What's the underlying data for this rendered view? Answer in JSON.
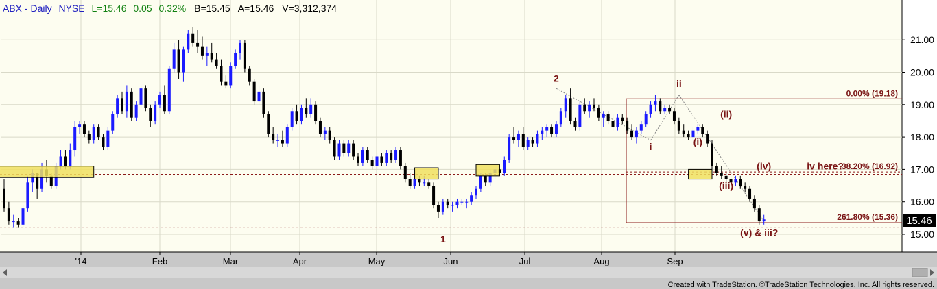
{
  "header": {
    "symbol_info": "ABX - Daily",
    "exchange": "NYSE",
    "last": "L=15.46",
    "change": "0.05",
    "change_pct": "0.32%",
    "bid": "B=15.45",
    "ask": "A=15.46",
    "volume": "V=3,312,374"
  },
  "price_label": "15.46",
  "footer": {
    "credit": "Created with TradeStation. ©TradeStation Technologies, Inc. All rights reserved."
  },
  "colors": {
    "plot_bg": "#fdfdf0",
    "bull": "#1a1aff",
    "bear": "#000000",
    "wave_label": "#7a1515",
    "fib_line": "#8b1a1a",
    "box_fill": "#f0e060",
    "header_blue": "#2020c0",
    "header_green": "#108010"
  },
  "chart_data": {
    "type": "candlestick",
    "title": "ABX - Daily",
    "ylim": [
      14.5,
      21.6
    ],
    "y_ticks": [
      "15.00",
      "16.00",
      "17.00",
      "18.00",
      "19.00",
      "20.00",
      "21.00"
    ],
    "x_labels": [
      "'14",
      "Feb",
      "Mar",
      "Apr",
      "May",
      "Jun",
      "Jul",
      "Aug",
      "Sep"
    ],
    "grid": true,
    "candles": [
      {
        "o": 16.4,
        "h": 16.7,
        "l": 15.7,
        "c": 15.8
      },
      {
        "o": 15.8,
        "h": 16.0,
        "l": 15.3,
        "c": 15.4
      },
      {
        "o": 15.4,
        "h": 15.6,
        "l": 15.2,
        "c": 15.4
      },
      {
        "o": 15.4,
        "h": 15.5,
        "l": 15.2,
        "c": 15.3
      },
      {
        "o": 15.3,
        "h": 15.9,
        "l": 15.2,
        "c": 15.8
      },
      {
        "o": 15.8,
        "h": 16.8,
        "l": 15.7,
        "c": 16.6
      },
      {
        "o": 16.6,
        "h": 17.0,
        "l": 16.3,
        "c": 16.9
      },
      {
        "o": 16.9,
        "h": 16.9,
        "l": 16.1,
        "c": 16.4
      },
      {
        "o": 16.4,
        "h": 17.2,
        "l": 16.3,
        "c": 17.0
      },
      {
        "o": 17.0,
        "h": 17.3,
        "l": 16.6,
        "c": 16.8
      },
      {
        "o": 16.8,
        "h": 16.9,
        "l": 16.4,
        "c": 16.5
      },
      {
        "o": 16.5,
        "h": 17.2,
        "l": 16.4,
        "c": 17.1
      },
      {
        "o": 17.1,
        "h": 17.6,
        "l": 17.0,
        "c": 17.4
      },
      {
        "o": 17.4,
        "h": 17.6,
        "l": 17.0,
        "c": 17.1
      },
      {
        "o": 17.1,
        "h": 17.8,
        "l": 17.0,
        "c": 17.6
      },
      {
        "o": 17.6,
        "h": 18.5,
        "l": 17.4,
        "c": 18.3
      },
      {
        "o": 18.3,
        "h": 18.5,
        "l": 18.1,
        "c": 18.4
      },
      {
        "o": 18.4,
        "h": 18.5,
        "l": 18.0,
        "c": 18.1
      },
      {
        "o": 18.1,
        "h": 18.2,
        "l": 17.8,
        "c": 17.9
      },
      {
        "o": 17.9,
        "h": 18.4,
        "l": 17.8,
        "c": 18.3
      },
      {
        "o": 18.3,
        "h": 18.4,
        "l": 17.9,
        "c": 18.0
      },
      {
        "o": 18.0,
        "h": 18.1,
        "l": 17.6,
        "c": 17.7
      },
      {
        "o": 17.7,
        "h": 18.3,
        "l": 17.6,
        "c": 18.2
      },
      {
        "o": 18.2,
        "h": 18.8,
        "l": 18.1,
        "c": 18.7
      },
      {
        "o": 18.7,
        "h": 19.3,
        "l": 18.6,
        "c": 19.2
      },
      {
        "o": 19.2,
        "h": 19.4,
        "l": 18.7,
        "c": 18.8
      },
      {
        "o": 18.8,
        "h": 19.6,
        "l": 18.6,
        "c": 19.4
      },
      {
        "o": 19.4,
        "h": 19.5,
        "l": 18.5,
        "c": 18.6
      },
      {
        "o": 18.6,
        "h": 19.1,
        "l": 18.5,
        "c": 19.0
      },
      {
        "o": 19.0,
        "h": 19.6,
        "l": 18.9,
        "c": 19.5
      },
      {
        "o": 19.5,
        "h": 19.6,
        "l": 18.8,
        "c": 18.9
      },
      {
        "o": 18.9,
        "h": 19.0,
        "l": 18.3,
        "c": 18.5
      },
      {
        "o": 18.5,
        "h": 19.1,
        "l": 18.4,
        "c": 19.0
      },
      {
        "o": 19.0,
        "h": 19.4,
        "l": 18.9,
        "c": 19.3
      },
      {
        "o": 19.3,
        "h": 19.6,
        "l": 18.7,
        "c": 18.8
      },
      {
        "o": 18.8,
        "h": 20.2,
        "l": 18.7,
        "c": 20.1
      },
      {
        "o": 20.1,
        "h": 20.9,
        "l": 20.0,
        "c": 20.7
      },
      {
        "o": 20.7,
        "h": 21.0,
        "l": 19.8,
        "c": 20.0
      },
      {
        "o": 20.0,
        "h": 20.8,
        "l": 19.7,
        "c": 20.7
      },
      {
        "o": 20.7,
        "h": 21.3,
        "l": 20.6,
        "c": 21.2
      },
      {
        "o": 21.2,
        "h": 21.4,
        "l": 20.8,
        "c": 20.9
      },
      {
        "o": 20.9,
        "h": 21.3,
        "l": 20.6,
        "c": 20.8
      },
      {
        "o": 20.8,
        "h": 21.1,
        "l": 20.4,
        "c": 20.5
      },
      {
        "o": 20.5,
        "h": 20.8,
        "l": 20.2,
        "c": 20.6
      },
      {
        "o": 20.6,
        "h": 20.9,
        "l": 20.3,
        "c": 20.4
      },
      {
        "o": 20.4,
        "h": 20.6,
        "l": 20.1,
        "c": 20.2
      },
      {
        "o": 20.2,
        "h": 20.4,
        "l": 19.6,
        "c": 19.7
      },
      {
        "o": 19.7,
        "h": 19.9,
        "l": 19.5,
        "c": 19.6
      },
      {
        "o": 19.6,
        "h": 20.3,
        "l": 19.5,
        "c": 20.2
      },
      {
        "o": 20.2,
        "h": 20.7,
        "l": 20.1,
        "c": 20.6
      },
      {
        "o": 20.6,
        "h": 21.0,
        "l": 20.4,
        "c": 20.9
      },
      {
        "o": 20.9,
        "h": 21.0,
        "l": 20.0,
        "c": 20.1
      },
      {
        "o": 20.1,
        "h": 20.2,
        "l": 19.6,
        "c": 19.7
      },
      {
        "o": 19.7,
        "h": 19.8,
        "l": 19.0,
        "c": 19.1
      },
      {
        "o": 19.1,
        "h": 19.6,
        "l": 19.0,
        "c": 19.4
      },
      {
        "o": 19.4,
        "h": 19.5,
        "l": 18.6,
        "c": 18.7
      },
      {
        "o": 18.7,
        "h": 18.8,
        "l": 18.0,
        "c": 18.1
      },
      {
        "o": 18.1,
        "h": 18.3,
        "l": 17.8,
        "c": 17.9
      },
      {
        "o": 17.9,
        "h": 18.1,
        "l": 17.7,
        "c": 17.9
      },
      {
        "o": 17.9,
        "h": 18.2,
        "l": 17.7,
        "c": 17.8
      },
      {
        "o": 17.8,
        "h": 18.4,
        "l": 17.7,
        "c": 18.3
      },
      {
        "o": 18.3,
        "h": 18.9,
        "l": 18.2,
        "c": 18.8
      },
      {
        "o": 18.8,
        "h": 19.0,
        "l": 18.4,
        "c": 18.5
      },
      {
        "o": 18.5,
        "h": 19.0,
        "l": 18.4,
        "c": 18.9
      },
      {
        "o": 18.9,
        "h": 19.2,
        "l": 18.6,
        "c": 18.7
      },
      {
        "o": 18.7,
        "h": 19.2,
        "l": 18.6,
        "c": 19.0
      },
      {
        "o": 19.0,
        "h": 19.1,
        "l": 18.4,
        "c": 18.5
      },
      {
        "o": 18.5,
        "h": 18.6,
        "l": 18.0,
        "c": 18.1
      },
      {
        "o": 18.1,
        "h": 18.3,
        "l": 17.9,
        "c": 18.2
      },
      {
        "o": 18.2,
        "h": 18.3,
        "l": 17.8,
        "c": 17.9
      },
      {
        "o": 17.9,
        "h": 18.0,
        "l": 17.3,
        "c": 17.4
      },
      {
        "o": 17.4,
        "h": 17.9,
        "l": 17.3,
        "c": 17.8
      },
      {
        "o": 17.8,
        "h": 17.9,
        "l": 17.4,
        "c": 17.5
      },
      {
        "o": 17.5,
        "h": 17.9,
        "l": 17.4,
        "c": 17.8
      },
      {
        "o": 17.8,
        "h": 17.9,
        "l": 17.3,
        "c": 17.4
      },
      {
        "o": 17.4,
        "h": 17.5,
        "l": 17.1,
        "c": 17.2
      },
      {
        "o": 17.2,
        "h": 17.7,
        "l": 17.1,
        "c": 17.6
      },
      {
        "o": 17.6,
        "h": 17.7,
        "l": 17.2,
        "c": 17.3
      },
      {
        "o": 17.3,
        "h": 17.4,
        "l": 17.0,
        "c": 17.1
      },
      {
        "o": 17.1,
        "h": 17.5,
        "l": 17.0,
        "c": 17.4
      },
      {
        "o": 17.4,
        "h": 17.5,
        "l": 17.1,
        "c": 17.2
      },
      {
        "o": 17.2,
        "h": 17.6,
        "l": 17.1,
        "c": 17.5
      },
      {
        "o": 17.5,
        "h": 17.6,
        "l": 17.2,
        "c": 17.3
      },
      {
        "o": 17.3,
        "h": 17.7,
        "l": 17.2,
        "c": 17.6
      },
      {
        "o": 17.6,
        "h": 17.7,
        "l": 17.0,
        "c": 17.1
      },
      {
        "o": 17.1,
        "h": 17.2,
        "l": 16.6,
        "c": 16.7
      },
      {
        "o": 16.7,
        "h": 16.9,
        "l": 16.4,
        "c": 16.5
      },
      {
        "o": 16.5,
        "h": 16.8,
        "l": 16.4,
        "c": 16.7
      },
      {
        "o": 16.7,
        "h": 16.8,
        "l": 16.5,
        "c": 16.6
      },
      {
        "o": 16.6,
        "h": 16.8,
        "l": 16.5,
        "c": 16.6
      },
      {
        "o": 16.6,
        "h": 16.7,
        "l": 16.4,
        "c": 16.5
      },
      {
        "o": 16.5,
        "h": 16.6,
        "l": 15.8,
        "c": 15.9
      },
      {
        "o": 15.9,
        "h": 16.0,
        "l": 15.5,
        "c": 15.7
      },
      {
        "o": 15.7,
        "h": 16.1,
        "l": 15.6,
        "c": 16.0
      },
      {
        "o": 16.0,
        "h": 16.1,
        "l": 15.8,
        "c": 15.9
      },
      {
        "o": 15.9,
        "h": 16.0,
        "l": 15.7,
        "c": 15.9
      },
      {
        "o": 15.9,
        "h": 16.1,
        "l": 15.8,
        "c": 16.0
      },
      {
        "o": 16.0,
        "h": 16.1,
        "l": 15.9,
        "c": 16.0
      },
      {
        "o": 16.0,
        "h": 16.1,
        "l": 15.8,
        "c": 16.0
      },
      {
        "o": 16.0,
        "h": 16.3,
        "l": 15.9,
        "c": 16.2
      },
      {
        "o": 16.2,
        "h": 16.5,
        "l": 16.1,
        "c": 16.4
      },
      {
        "o": 16.4,
        "h": 16.9,
        "l": 16.3,
        "c": 16.8
      },
      {
        "o": 16.8,
        "h": 16.9,
        "l": 16.5,
        "c": 16.6
      },
      {
        "o": 16.6,
        "h": 17.0,
        "l": 16.5,
        "c": 16.9
      },
      {
        "o": 16.9,
        "h": 17.1,
        "l": 16.7,
        "c": 17.0
      },
      {
        "o": 17.0,
        "h": 17.0,
        "l": 16.8,
        "c": 16.9
      },
      {
        "o": 16.9,
        "h": 17.4,
        "l": 16.8,
        "c": 17.3
      },
      {
        "o": 17.3,
        "h": 18.1,
        "l": 17.2,
        "c": 18.0
      },
      {
        "o": 18.0,
        "h": 18.3,
        "l": 17.8,
        "c": 17.9
      },
      {
        "o": 17.9,
        "h": 18.2,
        "l": 17.7,
        "c": 18.1
      },
      {
        "o": 18.1,
        "h": 18.3,
        "l": 17.6,
        "c": 17.7
      },
      {
        "o": 17.7,
        "h": 18.0,
        "l": 17.6,
        "c": 17.9
      },
      {
        "o": 17.9,
        "h": 18.0,
        "l": 17.7,
        "c": 17.8
      },
      {
        "o": 17.8,
        "h": 18.2,
        "l": 17.7,
        "c": 18.1
      },
      {
        "o": 18.1,
        "h": 18.3,
        "l": 17.9,
        "c": 18.2
      },
      {
        "o": 18.2,
        "h": 18.4,
        "l": 18.0,
        "c": 18.3
      },
      {
        "o": 18.3,
        "h": 18.4,
        "l": 18.0,
        "c": 18.1
      },
      {
        "o": 18.1,
        "h": 18.5,
        "l": 18.0,
        "c": 18.4
      },
      {
        "o": 18.4,
        "h": 18.9,
        "l": 18.3,
        "c": 18.8
      },
      {
        "o": 18.8,
        "h": 19.3,
        "l": 18.6,
        "c": 19.2
      },
      {
        "o": 19.2,
        "h": 19.5,
        "l": 18.4,
        "c": 18.5
      },
      {
        "o": 18.5,
        "h": 18.6,
        "l": 18.2,
        "c": 18.3
      },
      {
        "o": 18.3,
        "h": 19.1,
        "l": 18.2,
        "c": 19.0
      },
      {
        "o": 19.0,
        "h": 19.2,
        "l": 18.7,
        "c": 18.8
      },
      {
        "o": 18.8,
        "h": 19.1,
        "l": 18.6,
        "c": 19.0
      },
      {
        "o": 19.0,
        "h": 19.2,
        "l": 18.8,
        "c": 18.9
      },
      {
        "o": 18.9,
        "h": 19.0,
        "l": 18.5,
        "c": 18.6
      },
      {
        "o": 18.6,
        "h": 18.8,
        "l": 18.3,
        "c": 18.7
      },
      {
        "o": 18.7,
        "h": 18.8,
        "l": 18.4,
        "c": 18.5
      },
      {
        "o": 18.5,
        "h": 18.7,
        "l": 18.2,
        "c": 18.3
      },
      {
        "o": 18.3,
        "h": 18.7,
        "l": 18.2,
        "c": 18.6
      },
      {
        "o": 18.6,
        "h": 18.7,
        "l": 18.4,
        "c": 18.5
      },
      {
        "o": 18.5,
        "h": 18.6,
        "l": 18.1,
        "c": 18.2
      },
      {
        "o": 18.2,
        "h": 18.4,
        "l": 17.9,
        "c": 18.0
      },
      {
        "o": 18.0,
        "h": 18.3,
        "l": 17.8,
        "c": 18.2
      },
      {
        "o": 18.2,
        "h": 18.5,
        "l": 18.1,
        "c": 18.4
      },
      {
        "o": 18.4,
        "h": 18.8,
        "l": 18.3,
        "c": 18.7
      },
      {
        "o": 18.7,
        "h": 19.1,
        "l": 18.6,
        "c": 19.0
      },
      {
        "o": 19.0,
        "h": 19.3,
        "l": 18.8,
        "c": 19.1
      },
      {
        "o": 19.1,
        "h": 19.2,
        "l": 18.7,
        "c": 18.8
      },
      {
        "o": 18.8,
        "h": 19.0,
        "l": 18.7,
        "c": 18.9
      },
      {
        "o": 18.9,
        "h": 19.0,
        "l": 18.7,
        "c": 18.8
      },
      {
        "o": 18.8,
        "h": 18.9,
        "l": 18.4,
        "c": 18.5
      },
      {
        "o": 18.5,
        "h": 18.6,
        "l": 18.1,
        "c": 18.2
      },
      {
        "o": 18.2,
        "h": 18.4,
        "l": 18.0,
        "c": 18.1
      },
      {
        "o": 18.1,
        "h": 18.2,
        "l": 17.9,
        "c": 18.0
      },
      {
        "o": 18.0,
        "h": 18.3,
        "l": 17.9,
        "c": 18.2
      },
      {
        "o": 18.2,
        "h": 18.4,
        "l": 18.1,
        "c": 18.3
      },
      {
        "o": 18.3,
        "h": 18.4,
        "l": 18.0,
        "c": 18.1
      },
      {
        "o": 18.1,
        "h": 18.2,
        "l": 17.7,
        "c": 17.8
      },
      {
        "o": 17.8,
        "h": 17.9,
        "l": 17.0,
        "c": 17.1
      },
      {
        "o": 17.1,
        "h": 17.2,
        "l": 16.8,
        "c": 16.9
      },
      {
        "o": 16.9,
        "h": 17.1,
        "l": 16.7,
        "c": 16.8
      },
      {
        "o": 16.8,
        "h": 16.9,
        "l": 16.6,
        "c": 16.7
      },
      {
        "o": 16.7,
        "h": 16.8,
        "l": 16.5,
        "c": 16.6
      },
      {
        "o": 16.6,
        "h": 16.8,
        "l": 16.5,
        "c": 16.7
      },
      {
        "o": 16.7,
        "h": 16.8,
        "l": 16.4,
        "c": 16.5
      },
      {
        "o": 16.5,
        "h": 16.6,
        "l": 16.3,
        "c": 16.4
      },
      {
        "o": 16.4,
        "h": 16.5,
        "l": 16.0,
        "c": 16.1
      },
      {
        "o": 16.1,
        "h": 16.2,
        "l": 15.7,
        "c": 15.8
      },
      {
        "o": 15.8,
        "h": 15.9,
        "l": 15.3,
        "c": 15.4
      },
      {
        "o": 15.4,
        "h": 15.6,
        "l": 15.3,
        "c": 15.46
      }
    ],
    "horizontal_lines": [
      {
        "name": "fib-0",
        "y": 19.18,
        "style": "solid"
      },
      {
        "name": "fib-38",
        "y": 16.92,
        "style": "dashed"
      },
      {
        "name": "fib-261",
        "y": 15.36,
        "style": "solid"
      },
      {
        "name": "support",
        "y": 16.85,
        "style": "dashed"
      },
      {
        "name": "low-line",
        "y": 15.22,
        "style": "dashed"
      }
    ],
    "fib_labels": [
      {
        "text": "0.00% (19.18)",
        "y": 19.18
      },
      {
        "text": "38.20% (16.92)",
        "y": 16.92
      },
      {
        "text": "261.80% (15.36)",
        "y": 15.36
      }
    ],
    "wave_labels": [
      {
        "text": "1",
        "bar": 93,
        "y": 14.75
      },
      {
        "text": "2",
        "bar": 117,
        "y": 19.7
      },
      {
        "text": "i",
        "bar": 137,
        "y": 17.6
      },
      {
        "text": "ii",
        "bar": 143,
        "y": 19.55
      },
      {
        "text": "(i)",
        "bar": 147,
        "y": 17.75
      },
      {
        "text": "(ii)",
        "bar": 153,
        "y": 18.6
      },
      {
        "text": "(iii)",
        "bar": 153,
        "y": 16.4
      },
      {
        "text": "(iv)",
        "bar": 161,
        "y": 17.0
      },
      {
        "text": "iv here?",
        "bar": 174,
        "y": 17.0
      },
      {
        "text": "(v) & iii?",
        "bar": 160,
        "y": 14.95
      }
    ]
  }
}
